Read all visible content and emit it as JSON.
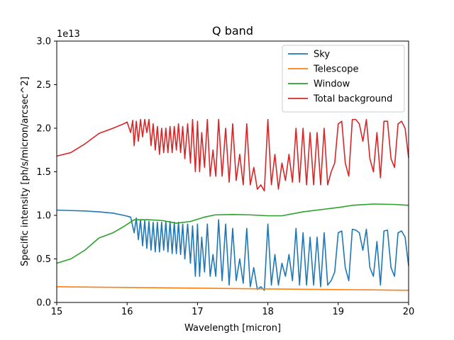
{
  "chart_data": {
    "type": "line",
    "title": "Q band",
    "xlabel": "Wavelength [micron]",
    "ylabel": "Specific intensity [ph/s/micron/arcsec^2]",
    "y_offset_label": "1e13",
    "xlim": [
      15,
      20
    ],
    "ylim": [
      0,
      3.0
    ],
    "y_scale_factor": 10000000000000.0,
    "x_ticks": [
      "15",
      "16",
      "17",
      "18",
      "19",
      "20"
    ],
    "y_ticks": [
      "0.0",
      "0.5",
      "1.0",
      "1.5",
      "2.0",
      "2.5",
      "3.0"
    ],
    "grid": false,
    "legend_position": "top-right",
    "series": [
      {
        "name": "Sky",
        "color": "#1f77b4",
        "points": [
          [
            15.0,
            1.06
          ],
          [
            15.2,
            1.055
          ],
          [
            15.4,
            1.05
          ],
          [
            15.6,
            1.04
          ],
          [
            15.8,
            1.025
          ],
          [
            15.95,
            1.0
          ],
          [
            16.05,
            0.98
          ],
          [
            16.1,
            0.8
          ],
          [
            16.13,
            0.97
          ],
          [
            16.16,
            0.72
          ],
          [
            16.19,
            0.95
          ],
          [
            16.22,
            0.65
          ],
          [
            16.25,
            0.94
          ],
          [
            16.28,
            0.62
          ],
          [
            16.31,
            0.93
          ],
          [
            16.34,
            0.6
          ],
          [
            16.37,
            0.92
          ],
          [
            16.4,
            0.58
          ],
          [
            16.43,
            0.92
          ],
          [
            16.46,
            0.58
          ],
          [
            16.49,
            0.92
          ],
          [
            16.52,
            0.6
          ],
          [
            16.55,
            0.93
          ],
          [
            16.58,
            0.58
          ],
          [
            16.61,
            0.93
          ],
          [
            16.64,
            0.56
          ],
          [
            16.67,
            0.92
          ],
          [
            16.7,
            0.56
          ],
          [
            16.73,
            0.92
          ],
          [
            16.76,
            0.55
          ],
          [
            16.79,
            0.9
          ],
          [
            16.82,
            0.5
          ],
          [
            16.86,
            0.9
          ],
          [
            16.9,
            0.45
          ],
          [
            16.93,
            0.88
          ],
          [
            16.97,
            0.3
          ],
          [
            17.0,
            0.9
          ],
          [
            17.03,
            0.3
          ],
          [
            17.06,
            0.75
          ],
          [
            17.1,
            0.35
          ],
          [
            17.14,
            0.9
          ],
          [
            17.18,
            0.3
          ],
          [
            17.22,
            0.55
          ],
          [
            17.26,
            0.3
          ],
          [
            17.3,
            0.95
          ],
          [
            17.35,
            0.25
          ],
          [
            17.4,
            0.9
          ],
          [
            17.45,
            0.2
          ],
          [
            17.5,
            0.85
          ],
          [
            17.55,
            0.25
          ],
          [
            17.6,
            0.5
          ],
          [
            17.65,
            0.22
          ],
          [
            17.7,
            0.85
          ],
          [
            17.75,
            0.18
          ],
          [
            17.8,
            0.4
          ],
          [
            17.85,
            0.15
          ],
          [
            17.9,
            0.18
          ],
          [
            17.95,
            0.14
          ],
          [
            18.0,
            0.9
          ],
          [
            18.05,
            0.2
          ],
          [
            18.1,
            0.55
          ],
          [
            18.15,
            0.2
          ],
          [
            18.2,
            0.45
          ],
          [
            18.25,
            0.3
          ],
          [
            18.3,
            0.55
          ],
          [
            18.35,
            0.25
          ],
          [
            18.4,
            0.85
          ],
          [
            18.45,
            0.2
          ],
          [
            18.5,
            0.8
          ],
          [
            18.55,
            0.2
          ],
          [
            18.6,
            0.75
          ],
          [
            18.65,
            0.2
          ],
          [
            18.7,
            0.75
          ],
          [
            18.75,
            0.18
          ],
          [
            18.8,
            0.8
          ],
          [
            18.85,
            0.2
          ],
          [
            18.9,
            0.25
          ],
          [
            18.95,
            0.35
          ],
          [
            19.0,
            0.8
          ],
          [
            19.05,
            0.82
          ],
          [
            19.1,
            0.4
          ],
          [
            19.15,
            0.25
          ],
          [
            19.2,
            0.84
          ],
          [
            19.25,
            0.83
          ],
          [
            19.3,
            0.8
          ],
          [
            19.35,
            0.6
          ],
          [
            19.4,
            0.84
          ],
          [
            19.45,
            0.4
          ],
          [
            19.5,
            0.3
          ],
          [
            19.55,
            0.7
          ],
          [
            19.6,
            0.2
          ],
          [
            19.65,
            0.82
          ],
          [
            19.7,
            0.83
          ],
          [
            19.75,
            0.4
          ],
          [
            19.8,
            0.3
          ],
          [
            19.85,
            0.8
          ],
          [
            19.9,
            0.82
          ],
          [
            19.95,
            0.75
          ],
          [
            20.0,
            0.42
          ]
        ]
      },
      {
        "name": "Telescope",
        "color": "#ff7f0e",
        "points": [
          [
            15.0,
            0.18
          ],
          [
            16.0,
            0.172
          ],
          [
            17.0,
            0.164
          ],
          [
            18.0,
            0.155
          ],
          [
            19.0,
            0.148
          ],
          [
            20.0,
            0.14
          ]
        ]
      },
      {
        "name": "Window",
        "color": "#2ca02c",
        "points": [
          [
            15.0,
            0.45
          ],
          [
            15.2,
            0.5
          ],
          [
            15.4,
            0.6
          ],
          [
            15.6,
            0.74
          ],
          [
            15.8,
            0.8
          ],
          [
            15.95,
            0.87
          ],
          [
            16.1,
            0.95
          ],
          [
            16.3,
            0.95
          ],
          [
            16.5,
            0.94
          ],
          [
            16.7,
            0.91
          ],
          [
            16.9,
            0.93
          ],
          [
            17.1,
            0.98
          ],
          [
            17.25,
            1.005
          ],
          [
            17.5,
            1.01
          ],
          [
            17.75,
            1.005
          ],
          [
            18.0,
            0.995
          ],
          [
            18.2,
            0.995
          ],
          [
            18.5,
            1.04
          ],
          [
            18.8,
            1.07
          ],
          [
            19.0,
            1.09
          ],
          [
            19.2,
            1.115
          ],
          [
            19.5,
            1.13
          ],
          [
            19.8,
            1.125
          ],
          [
            20.0,
            1.115
          ]
        ]
      },
      {
        "name": "Total background",
        "color": "#d62728",
        "points": [
          [
            15.0,
            1.68
          ],
          [
            15.2,
            1.72
          ],
          [
            15.4,
            1.82
          ],
          [
            15.6,
            1.94
          ],
          [
            15.8,
            2.0
          ],
          [
            15.95,
            2.05
          ],
          [
            16.0,
            2.07
          ],
          [
            16.05,
            1.95
          ],
          [
            16.08,
            2.09
          ],
          [
            16.1,
            1.8
          ],
          [
            16.13,
            2.08
          ],
          [
            16.16,
            1.85
          ],
          [
            16.19,
            2.1
          ],
          [
            16.22,
            1.9
          ],
          [
            16.25,
            2.1
          ],
          [
            16.28,
            1.95
          ],
          [
            16.31,
            2.1
          ],
          [
            16.34,
            1.8
          ],
          [
            16.37,
            2.05
          ],
          [
            16.4,
            1.75
          ],
          [
            16.43,
            2.02
          ],
          [
            16.46,
            1.7
          ],
          [
            16.49,
            2.0
          ],
          [
            16.52,
            1.72
          ],
          [
            16.55,
            2.0
          ],
          [
            16.58,
            1.72
          ],
          [
            16.61,
            2.02
          ],
          [
            16.64,
            1.72
          ],
          [
            16.67,
            2.02
          ],
          [
            16.7,
            1.75
          ],
          [
            16.73,
            2.05
          ],
          [
            16.76,
            1.72
          ],
          [
            16.79,
            2.02
          ],
          [
            16.82,
            1.65
          ],
          [
            16.86,
            2.05
          ],
          [
            16.9,
            1.6
          ],
          [
            16.93,
            2.1
          ],
          [
            16.97,
            1.5
          ],
          [
            17.0,
            2.08
          ],
          [
            17.03,
            1.5
          ],
          [
            17.06,
            1.95
          ],
          [
            17.1,
            1.55
          ],
          [
            17.14,
            2.1
          ],
          [
            17.18,
            1.45
          ],
          [
            17.22,
            1.75
          ],
          [
            17.26,
            1.45
          ],
          [
            17.3,
            2.1
          ],
          [
            17.35,
            1.45
          ],
          [
            17.4,
            2.0
          ],
          [
            17.45,
            1.38
          ],
          [
            17.5,
            2.05
          ],
          [
            17.55,
            1.4
          ],
          [
            17.6,
            1.7
          ],
          [
            17.65,
            1.35
          ],
          [
            17.7,
            2.05
          ],
          [
            17.75,
            1.35
          ],
          [
            17.8,
            1.55
          ],
          [
            17.85,
            1.3
          ],
          [
            17.9,
            1.35
          ],
          [
            17.95,
            1.28
          ],
          [
            18.0,
            2.1
          ],
          [
            18.05,
            1.35
          ],
          [
            18.1,
            1.7
          ],
          [
            18.15,
            1.3
          ],
          [
            18.2,
            1.6
          ],
          [
            18.25,
            1.4
          ],
          [
            18.3,
            1.7
          ],
          [
            18.35,
            1.38
          ],
          [
            18.4,
            2.0
          ],
          [
            18.45,
            1.38
          ],
          [
            18.5,
            2.0
          ],
          [
            18.55,
            1.35
          ],
          [
            18.6,
            1.95
          ],
          [
            18.65,
            1.35
          ],
          [
            18.7,
            1.95
          ],
          [
            18.75,
            1.35
          ],
          [
            18.8,
            2.0
          ],
          [
            18.85,
            1.35
          ],
          [
            18.9,
            1.5
          ],
          [
            18.95,
            1.6
          ],
          [
            19.0,
            2.05
          ],
          [
            19.05,
            2.08
          ],
          [
            19.1,
            1.6
          ],
          [
            19.15,
            1.45
          ],
          [
            19.2,
            2.1
          ],
          [
            19.25,
            2.1
          ],
          [
            19.3,
            2.05
          ],
          [
            19.35,
            1.85
          ],
          [
            19.4,
            2.1
          ],
          [
            19.45,
            1.65
          ],
          [
            19.5,
            1.5
          ],
          [
            19.55,
            1.95
          ],
          [
            19.6,
            1.43
          ],
          [
            19.65,
            2.08
          ],
          [
            19.7,
            2.08
          ],
          [
            19.75,
            1.65
          ],
          [
            19.8,
            1.55
          ],
          [
            19.85,
            2.05
          ],
          [
            19.9,
            2.08
          ],
          [
            19.95,
            2.0
          ],
          [
            20.0,
            1.66
          ]
        ]
      }
    ]
  }
}
